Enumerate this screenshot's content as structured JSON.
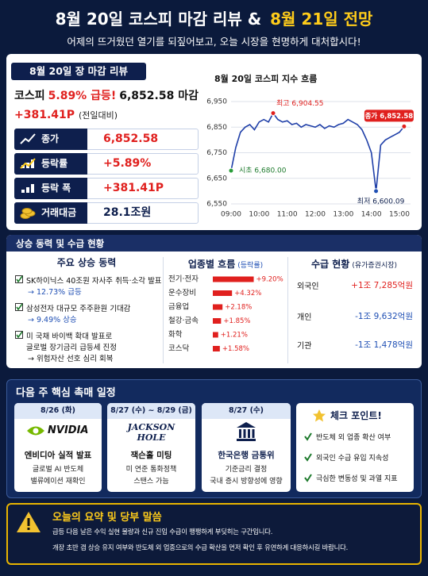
{
  "header": {
    "title_a": "8월 20일 코스피 마감 리뷰 &",
    "title_b": "8월 21일 전망",
    "subtitle": "어제의 뜨거웠던 열기를 되짚어보고, 오늘 시장을 현명하게 대처합시다!"
  },
  "review": {
    "badge": "8월 20일 장 마감 리뷰",
    "headline": [
      "코스피",
      "5.89% 급등!",
      "6,852.58 마감"
    ],
    "change": "+381.41P",
    "change_note": "(전일대비)",
    "stats": [
      {
        "label": "종가",
        "value": "6,852.58"
      },
      {
        "label": "등락률",
        "value": "+5.89%"
      },
      {
        "label": "등락 폭",
        "value": "+381.41P"
      },
      {
        "label": "거래대금",
        "value": "28.1조원"
      }
    ]
  },
  "chart_data": [
    {
      "type": "line",
      "title": "8월 20일 코스피 지수 흐름",
      "categories": [
        "09:00",
        null,
        null,
        null,
        null,
        null,
        "10:00",
        null,
        null,
        null,
        null,
        null,
        "11:00",
        null,
        null,
        null,
        null,
        null,
        "12:00",
        null,
        null,
        null,
        null,
        null,
        "13:00",
        null,
        null,
        null,
        null,
        null,
        "14:00",
        null,
        null,
        null,
        null,
        null,
        "15:00",
        null
      ],
      "values": [
        6680,
        6770,
        6830,
        6850,
        6860,
        6840,
        6870,
        6880,
        6870,
        6904.55,
        6880,
        6870,
        6875,
        6860,
        6865,
        6850,
        6860,
        6855,
        6850,
        6860,
        6845,
        6855,
        6850,
        6860,
        6865,
        6880,
        6870,
        6860,
        6840,
        6800,
        6750,
        6600.09,
        6780,
        6800,
        6810,
        6820,
        6830,
        6852.58
      ],
      "color": "#1f3fa8",
      "ylim": [
        6550,
        6950
      ],
      "yticks": [
        {
          "value": 6550,
          "label": "6,550"
        },
        {
          "value": 6650,
          "label": "6,650"
        },
        {
          "value": 6750,
          "label": "6,750"
        },
        {
          "value": 6850,
          "label": "6,850"
        },
        {
          "value": 6950,
          "label": "6,950"
        }
      ],
      "grid": true,
      "annotations": [
        "최고 6,904.55",
        "시초 6,680.00",
        "최저 6,600.09",
        "종가 6,852.58"
      ]
    },
    {
      "type": "bar",
      "orientation": "horizontal",
      "title": "업종별 흐름",
      "subtitle": "(등락률)",
      "categories": [
        "전기·전자",
        "운수장비",
        "금융업",
        "철강·금속",
        "화학",
        "코스닥"
      ],
      "values": [
        9.2,
        4.32,
        2.18,
        1.85,
        1.21,
        1.58
      ],
      "value_labels": [
        "+9.20%",
        "+4.32%",
        "+2.18%",
        "+1.85%",
        "+1.21%",
        "+1.58%"
      ],
      "color": "#e0201e",
      "xlim": [
        0,
        10
      ]
    }
  ],
  "drivers": {
    "section_title": "상승 동력 및 수급 현황",
    "title": "주요 상승 동력",
    "items": [
      {
        "lines": [
          "SK하이닉스 40조원 자사주 취득·소각 발표"
        ],
        "result": "→ 12.73% 급등"
      },
      {
        "lines": [
          "삼성전자 대규모 주주환원 기대감"
        ],
        "result": "→ 9.49% 상승"
      },
      {
        "lines": [
          "미 국채 바이백 확대 발표로",
          "글로벌 장기금리 급등세 진정"
        ],
        "result": "→ 위험자산 선호 심리 회복"
      }
    ]
  },
  "flows": {
    "title": "수급 현황",
    "subtitle": "(유가증권시장)",
    "rows": [
      {
        "label": "외국인",
        "value": "+1조 7,285억원"
      },
      {
        "label": "개인",
        "value": "-1조 9,632억원"
      },
      {
        "label": "기관",
        "value": "-1조 1,478억원"
      }
    ]
  },
  "schedule": {
    "title": "다음 주 핵심 촉매 일정",
    "events": [
      {
        "date": "8/26 (화)",
        "logo": "NVIDIA",
        "name": "엔비디아 실적 발표",
        "lines": [
          "글로벌 AI 반도체",
          "밸류에이션 재확인"
        ]
      },
      {
        "date": "8/27 (수) ~ 8/29 (금)",
        "logo": "JACKSON HOLE",
        "name": "잭슨홀 미팅",
        "lines": [
          "미 연준 통화정책",
          "스탠스 가늠"
        ]
      },
      {
        "date": "8/27 (수)",
        "name": "한국은행 금통위",
        "lines": [
          "기준금리 결정",
          "국내 증시 방향성에 영향"
        ]
      }
    ],
    "checkpoints": {
      "title": "체크 포인트!",
      "items": [
        "반도체 외 업종 확산 여부",
        "외국인 수급 유입 지속성",
        "극심한 변동성 및 과열 지표"
      ]
    }
  },
  "summary": {
    "title": "오늘의 요약 및 당부 말씀",
    "lines": [
      "급등 다음 날은 수익 실현 물량과 신규 진입 수급이 팽팽하게 부딪히는 구간입니다.",
      "개장 초반 갭 상승 유지 여부와 반도체 외 업종으로의 수급 확산을 먼저 확인 후 유연하게 대응하시길 바랍니다."
    ]
  }
}
